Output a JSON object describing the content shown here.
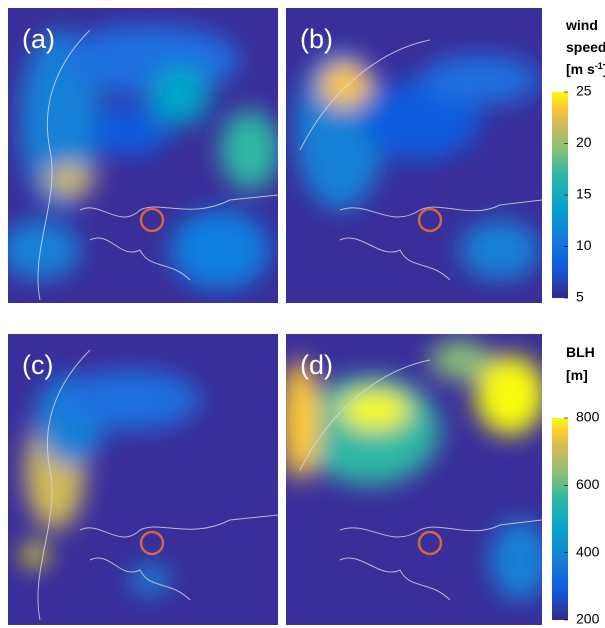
{
  "panels": [
    {
      "label": "(a)"
    },
    {
      "label": "(b)"
    },
    {
      "label": "(c)"
    },
    {
      "label": "(d)"
    }
  ],
  "colorbars": [
    {
      "title": [
        "wind",
        "speed"
      ],
      "unit": [
        "[m s",
        "-1",
        "]"
      ],
      "lim": [
        5,
        25
      ],
      "ticks": [
        5,
        10,
        15,
        20,
        25
      ]
    },
    {
      "title": [
        "BLH",
        "[m]"
      ],
      "lim": [
        200,
        800
      ],
      "ticks": [
        200,
        400,
        600,
        800
      ]
    }
  ]
}
